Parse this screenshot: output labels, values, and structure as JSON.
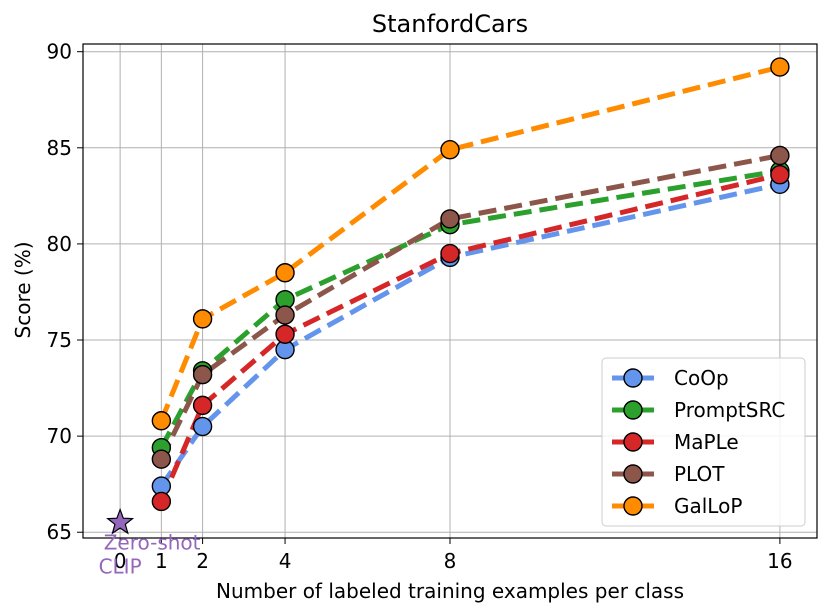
{
  "chart_data": {
    "type": "line",
    "title": "StanfordCars",
    "xlabel": "Number of labeled training examples per class",
    "ylabel": "Score (%)",
    "x": [
      1,
      2,
      4,
      8,
      16
    ],
    "xticks": [
      "0",
      "1",
      "2",
      "4",
      "8",
      "16"
    ],
    "yticks": [
      "65",
      "70",
      "75",
      "80",
      "85",
      "90"
    ],
    "xlim": [
      -0.9,
      16.9
    ],
    "ylim": [
      64.7,
      90.4
    ],
    "grid": true,
    "legend_position": "lower-right",
    "series": [
      {
        "name": "CoOp",
        "values": [
          67.4,
          70.5,
          74.5,
          79.3,
          83.1
        ],
        "color": "#6495ED"
      },
      {
        "name": "PromptSRC",
        "values": [
          69.4,
          73.4,
          77.1,
          81.0,
          83.8
        ],
        "color": "#2CA02C"
      },
      {
        "name": "MaPLe",
        "values": [
          66.6,
          71.6,
          75.3,
          79.5,
          83.6
        ],
        "color": "#D62728"
      },
      {
        "name": "PLOT",
        "values": [
          68.8,
          73.2,
          76.3,
          81.3,
          84.6
        ],
        "color": "#8C564B"
      },
      {
        "name": "GalLoP",
        "values": [
          70.8,
          76.1,
          78.5,
          84.9,
          89.2
        ],
        "color": "#FF8C00"
      }
    ],
    "zero_shot": {
      "label_line1": "Zero-shot",
      "label_line2": "CLIP",
      "x": 0,
      "y": 65.5,
      "color": "#9467BD"
    }
  }
}
